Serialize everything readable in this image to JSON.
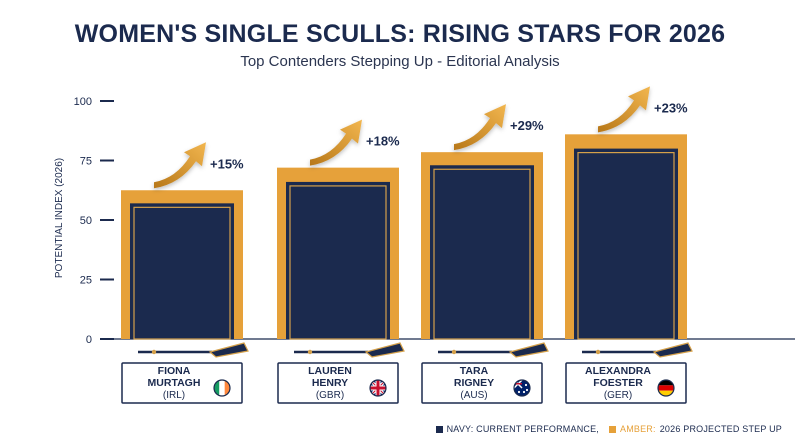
{
  "header": {
    "title": "WOMEN'S SINGLE SCULLS: RISING STARS FOR 2026",
    "subtitle": "Top Contenders Stepping Up - Editorial Analysis"
  },
  "legend": {
    "navy_label": "NAVY: CURRENT PERFORMANCE,",
    "amber_prefix": "AMBER:",
    "amber_label": "2026 PROJECTED STEP UP"
  },
  "colors": {
    "navy": "#1b2a4e",
    "amber": "#e6a13a",
    "gold_outline": "#d4a04a"
  },
  "chart_data": {
    "type": "bar",
    "ylabel": "POTENTIAL INDEX (2026)",
    "ylim": [
      0,
      100
    ],
    "yticks": [
      "0",
      "25",
      "50",
      "75",
      "100"
    ],
    "grid": false,
    "legend_position": "bottom-right",
    "categories": [
      {
        "first": "FIONA",
        "last": "MURTAGH",
        "country": "(IRL)",
        "flag": "ireland-flag-icon"
      },
      {
        "first": "LAUREN",
        "last": "HENRY",
        "country": "(GBR)",
        "flag": "uk-flag-icon"
      },
      {
        "first": "TARA",
        "last": "RIGNEY",
        "country": "(AUS)",
        "flag": "australia-flag-icon"
      },
      {
        "first": "ALEXANDRA",
        "last": "FOESTER",
        "country": "(GER)",
        "flag": "germany-flag-icon"
      }
    ],
    "series": [
      {
        "name": "CURRENT PERFORMANCE",
        "values": [
          57,
          66,
          73,
          80
        ]
      },
      {
        "name": "2026 PROJECTED STEP UP",
        "values": [
          62.5,
          72,
          78.5,
          86
        ]
      }
    ],
    "labels": [
      "+15%",
      "+18%",
      "+29%",
      "+23%"
    ]
  }
}
